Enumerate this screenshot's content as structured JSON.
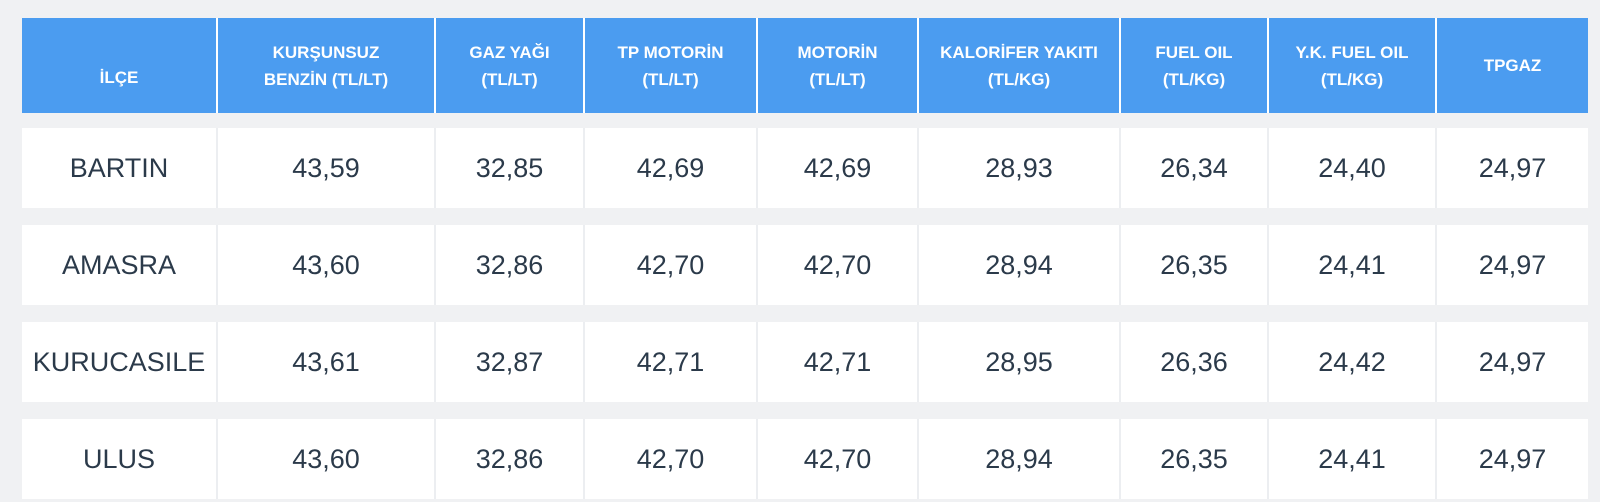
{
  "table": {
    "headers": [
      "İLÇE",
      "KURŞUNSUZ\nBENZİN (TL/LT)",
      "GAZ YAĞI\n(TL/LT)",
      "TP MOTORİN\n(TL/LT)",
      "MOTORİN\n(TL/LT)",
      "KALORİFER YAKITI\n(TL/KG)",
      "FUEL OIL\n(TL/KG)",
      "Y.K. FUEL OIL\n(TL/KG)",
      "TPGAZ"
    ],
    "rows": [
      [
        "BARTIN",
        "43,59",
        "32,85",
        "42,69",
        "42,69",
        "28,93",
        "26,34",
        "24,40",
        "24,97"
      ],
      [
        "AMASRA",
        "43,60",
        "32,86",
        "42,70",
        "42,70",
        "28,94",
        "26,35",
        "24,41",
        "24,97"
      ],
      [
        "KURUCASILE",
        "43,61",
        "32,87",
        "42,71",
        "42,71",
        "28,95",
        "26,36",
        "24,42",
        "24,97"
      ],
      [
        "ULUS",
        "43,60",
        "32,86",
        "42,70",
        "42,70",
        "28,94",
        "26,35",
        "24,41",
        "24,97"
      ]
    ]
  },
  "colors": {
    "header_bg": "#4b9cf0",
    "header_text": "#ffffff",
    "page_bg": "#f0f1f3",
    "row_bg": "#ffffff",
    "cell_text": "#2b3a4a"
  }
}
